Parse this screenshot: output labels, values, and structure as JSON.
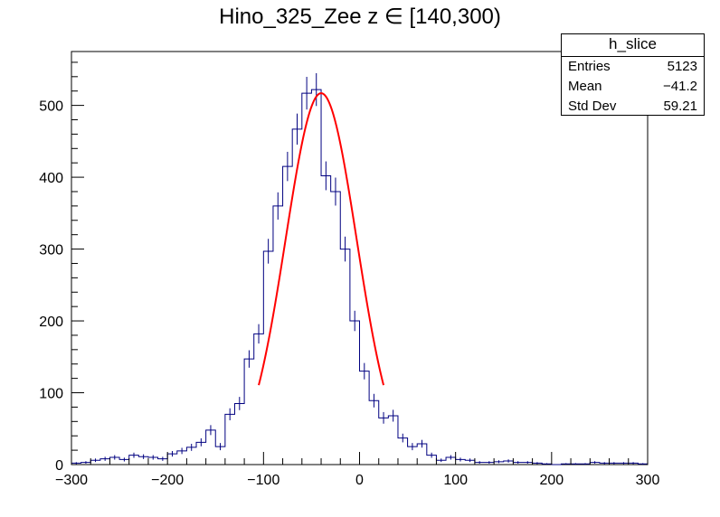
{
  "chart_data": {
    "type": "bar",
    "title": "Hino_325_Zee z  ∈ [140,300)",
    "xlabel": "",
    "ylabel": "",
    "xlim": [
      -300,
      300
    ],
    "ylim": [
      0,
      575
    ],
    "x_ticks": [
      -300,
      -200,
      -100,
      0,
      100,
      200,
      300
    ],
    "x_tick_labels": [
      "−300",
      "−200",
      "−100",
      "0",
      "100",
      "200",
      "300"
    ],
    "y_ticks": [
      0,
      100,
      200,
      300,
      400,
      500
    ],
    "y_tick_labels": [
      "0",
      "100",
      "200",
      "300",
      "400",
      "500"
    ],
    "bin_width": 10,
    "bin_low_edges": [
      -300,
      -290,
      -280,
      -270,
      -260,
      -250,
      -240,
      -230,
      -220,
      -210,
      -200,
      -190,
      -180,
      -170,
      -160,
      -150,
      -140,
      -130,
      -120,
      -110,
      -100,
      -90,
      -80,
      -70,
      -60,
      -50,
      -40,
      -30,
      -20,
      -10,
      0,
      10,
      20,
      30,
      40,
      50,
      60,
      70,
      80,
      90,
      100,
      110,
      120,
      130,
      140,
      150,
      160,
      170,
      180,
      190,
      200,
      210,
      220,
      230,
      240,
      250,
      260,
      270,
      280,
      290
    ],
    "series": [
      {
        "name": "h_slice",
        "color": "#000080",
        "values": [
          2,
          3,
          6,
          8,
          10,
          7,
          13,
          11,
          10,
          8,
          15,
          19,
          24,
          31,
          48,
          25,
          70,
          85,
          147,
          182,
          297,
          360,
          415,
          467,
          517,
          522,
          402,
          380,
          300,
          200,
          130,
          89,
          65,
          68,
          37,
          25,
          29,
          13,
          6,
          10,
          7,
          6,
          3,
          3,
          4,
          5,
          3,
          3,
          2,
          1,
          0,
          1,
          1,
          1,
          3,
          2,
          2,
          2,
          2,
          1
        ]
      }
    ],
    "fit": {
      "name": "gaus",
      "color": "#ff0000",
      "range": [
        -105,
        25
      ],
      "constant": 517,
      "mean": -40,
      "sigma": 37
    },
    "legend_position": "top-right"
  },
  "stats": {
    "name": "h_slice",
    "rows": [
      {
        "label": "Entries",
        "value": "5123"
      },
      {
        "label": "Mean",
        "value": "−41.2"
      },
      {
        "label": "Std Dev",
        "value": "59.21"
      }
    ]
  }
}
